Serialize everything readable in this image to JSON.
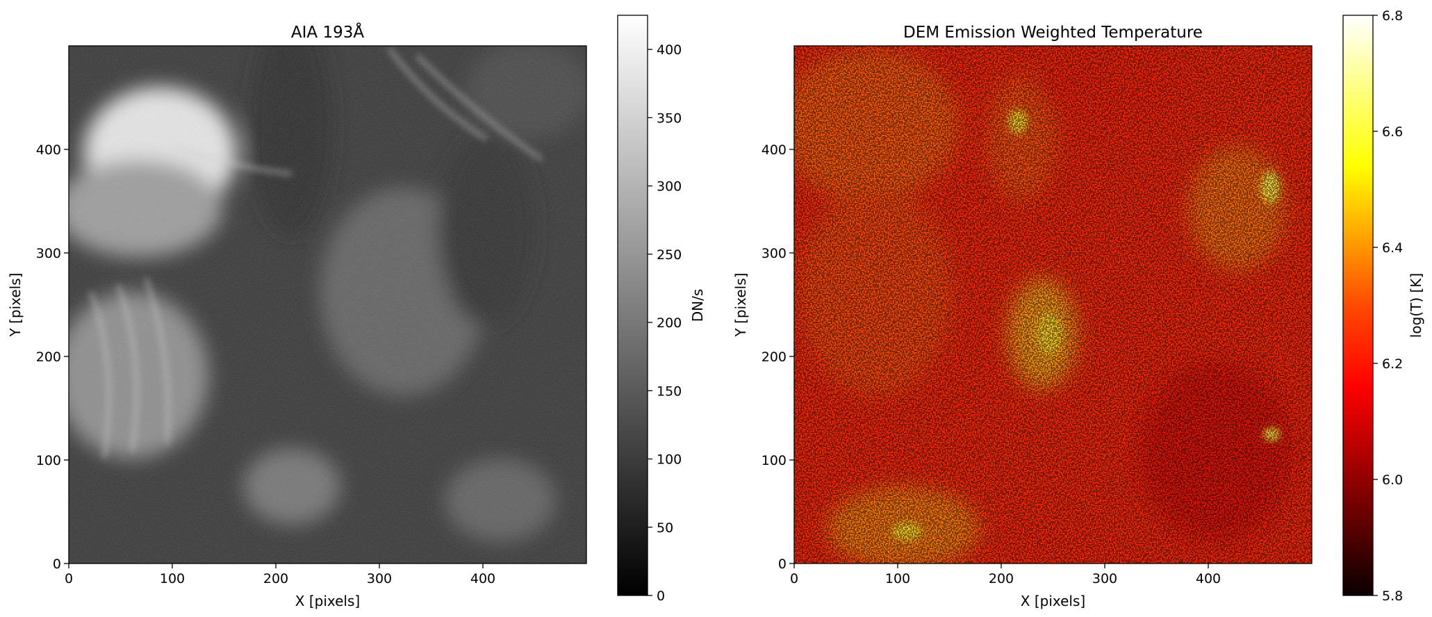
{
  "left_panel": {
    "title": "AIA 193Å",
    "xlabel": "X [pixels]",
    "ylabel": "Y [pixels]",
    "xticks": [
      "0",
      "100",
      "200",
      "300",
      "400"
    ],
    "yticks": [
      "0",
      "100",
      "200",
      "300",
      "400"
    ],
    "colormap": "gray",
    "colorbar": {
      "label": "DN/s",
      "range": [
        0,
        425
      ],
      "ticks": [
        "0",
        "50",
        "100",
        "150",
        "200",
        "250",
        "300",
        "350",
        "400"
      ]
    }
  },
  "right_panel": {
    "title": "DEM Emission Weighted Temperature",
    "xlabel": "X [pixels]",
    "ylabel": "Y [pixels]",
    "xticks": [
      "0",
      "100",
      "200",
      "300",
      "400"
    ],
    "yticks": [
      "0",
      "100",
      "200",
      "300",
      "400"
    ],
    "colormap": "hot",
    "colorbar": {
      "label": "log(T) [K]",
      "range": [
        5.8,
        6.8
      ],
      "ticks": [
        "5.8",
        "6.0",
        "6.2",
        "6.4",
        "6.6",
        "6.8"
      ]
    }
  }
}
